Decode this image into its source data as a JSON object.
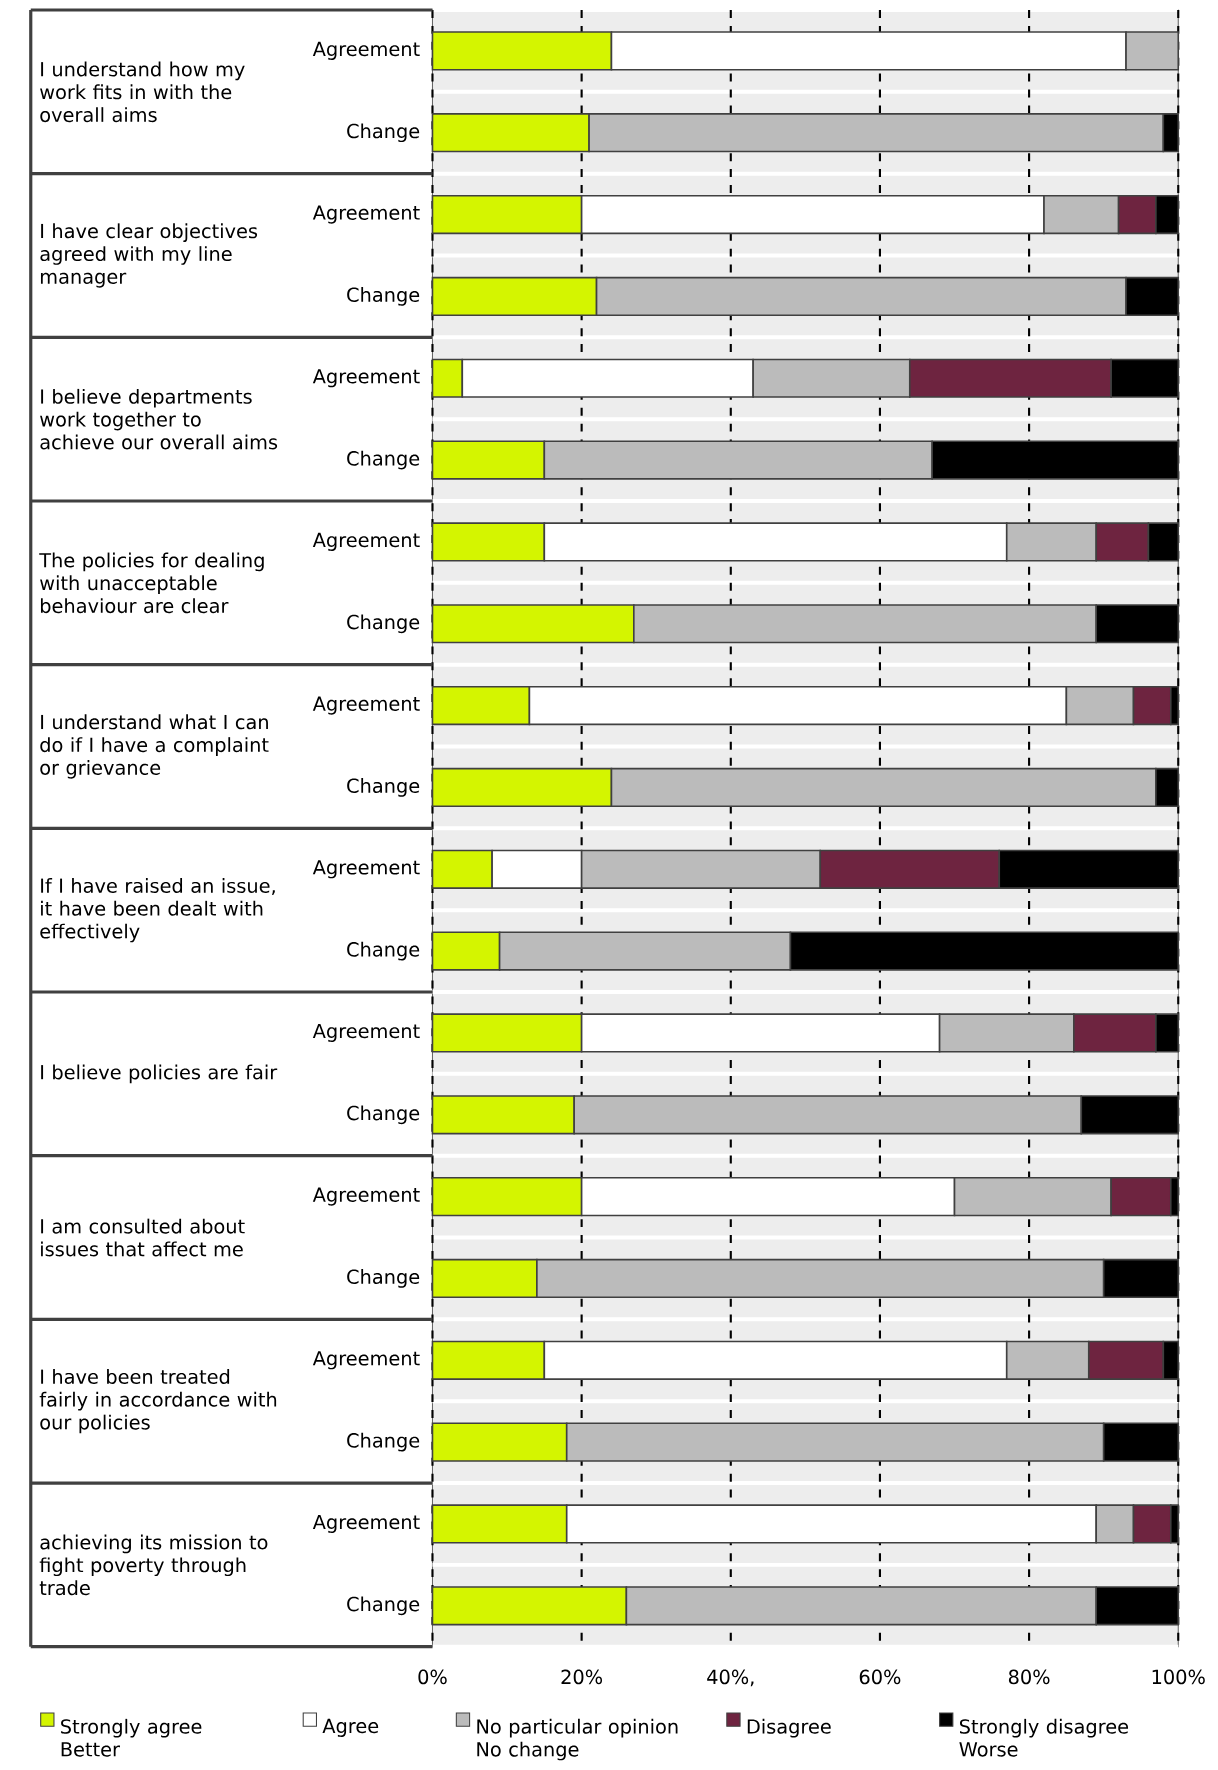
{
  "chart_data": {
    "type": "bar",
    "orientation": "horizontal",
    "stacked": true,
    "categories": [
      "Agreement",
      "Change",
      "Agreement",
      "Change",
      "Agreement",
      "Change",
      "Agreement",
      "Change",
      "Agreement",
      "Change",
      "Agreement",
      "Change",
      "Agreement",
      "Change",
      "Agreement",
      "Change",
      "Agreement",
      "Change",
      "Agreement",
      "Change"
    ],
    "series": [
      {
        "name": "Strongly agree Better",
        "color": "#d4f500",
        "values": [
          24,
          21,
          20,
          22,
          4,
          15,
          15,
          27,
          13,
          24,
          8,
          9,
          20,
          19,
          20,
          14,
          15,
          18,
          18,
          26
        ]
      },
      {
        "name": "Agree",
        "color": "#ffffff",
        "values": [
          69,
          null,
          62,
          null,
          39,
          null,
          62,
          null,
          72,
          null,
          12,
          null,
          48,
          null,
          50,
          null,
          62,
          null,
          71,
          null
        ]
      },
      {
        "name": "No particular opinion No change",
        "color": "#bbbbbb",
        "values": [
          7,
          77,
          10,
          71,
          21,
          52,
          12,
          62,
          9,
          73,
          32,
          39,
          18,
          68,
          21,
          76,
          11,
          72,
          5,
          63
        ]
      },
      {
        "name": "Disagree",
        "color": "#6e2440",
        "values": [
          null,
          null,
          5,
          null,
          27,
          null,
          7,
          null,
          5,
          null,
          24,
          null,
          11,
          null,
          8,
          null,
          10,
          null,
          5,
          null
        ]
      },
      {
        "name": "Strongly disagree Worse",
        "color": "#000000",
        "values": [
          null,
          2,
          3,
          7,
          9,
          33,
          4,
          11,
          1,
          3,
          24,
          52,
          3,
          13,
          1,
          10,
          2,
          10,
          1,
          11
        ]
      }
    ],
    "xlim": [
      0,
      100
    ],
    "xticks": [
      {
        "value": 0,
        "label": "0%"
      },
      {
        "value": 20,
        "label": "20%"
      },
      {
        "value": 40,
        "label": "40%,"
      },
      {
        "value": 60,
        "label": "60%"
      },
      {
        "value": 80,
        "label": "80%"
      },
      {
        "value": 100,
        "label": "100%"
      }
    ],
    "grid": "x",
    "legend": "bottom",
    "annotations": [
      "I understand how my work fits in with the overall aims",
      "I have clear objectives agreed with my line manager",
      "I believe departments work together to achieve our overall aims",
      "The policies for dealing with unacceptable behaviour are clear",
      "I understand what I can do if I have a complaint or grievance",
      "If I have raised an issue, it have been dealt with effectively",
      "I believe policies are fair",
      "I am consulted about issues that affect me",
      "I have been treated fairly in accordance with our policies",
      "achieving its mission to fight poverty through trade"
    ]
  }
}
